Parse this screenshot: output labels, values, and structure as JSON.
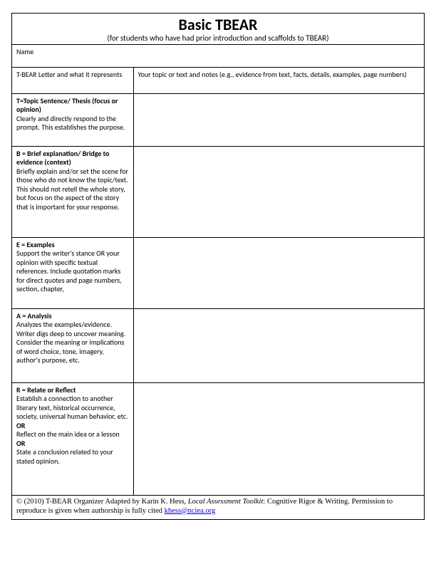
{
  "header": {
    "title": "Basic TBEAR",
    "subtitle": "(for students who have had prior introduction and scaffolds to TBEAR)"
  },
  "name_row": {
    "label": "Name"
  },
  "columns": {
    "left_header": "T-BEAR Letter and what it represents",
    "right_header": "Your topic or text and notes (e.g., evidence from text, facts, details, examples, page numbers)"
  },
  "rows": {
    "t": {
      "lead": "T=Topic Sentence/ Thesis (focus or opinion)",
      "body": "Clearly and directly respond to the prompt. This establishes the purpose."
    },
    "b": {
      "lead": "B = Brief explanation/ Bridge to evidence (context)",
      "body": "Briefly explain and/or set the scene for those who do not know the topic/text. This should not retell the whole story, but focus on the aspect of the story that is important for your response."
    },
    "e": {
      "lead": "E = Examples",
      "body": "Support the writer's stance OR your opinion with specific textual references. Include quotation marks for direct quotes and page numbers, section, chapter,"
    },
    "a": {
      "lead": "A = Analysis",
      "body": "Analyzes the examples/evidence. Writer digs deep to uncover meaning. Consider the meaning or implications of word choice, tone, imagery, author's purpose, etc."
    },
    "r": {
      "lead": "R = Relate or Reflect",
      "body1": "Establish a connection to another literary text, historical occurrence, society, universal human behavior, etc.",
      "or1": "OR",
      "body2": "Reflect on the main idea or a lesson",
      "or2": "OR",
      "body3": "State a conclusion related to your stated opinion."
    }
  },
  "footer": {
    "pre": "© (2010) T-BEAR Organizer Adapted by Karin K. Hess, ",
    "italic": "Local Assessment Toolkit",
    "post": ": Cognitive Rigor & Writing. Permission to reproduce is given when authorship is fully cited ",
    "email": "khess@nciea.org"
  }
}
